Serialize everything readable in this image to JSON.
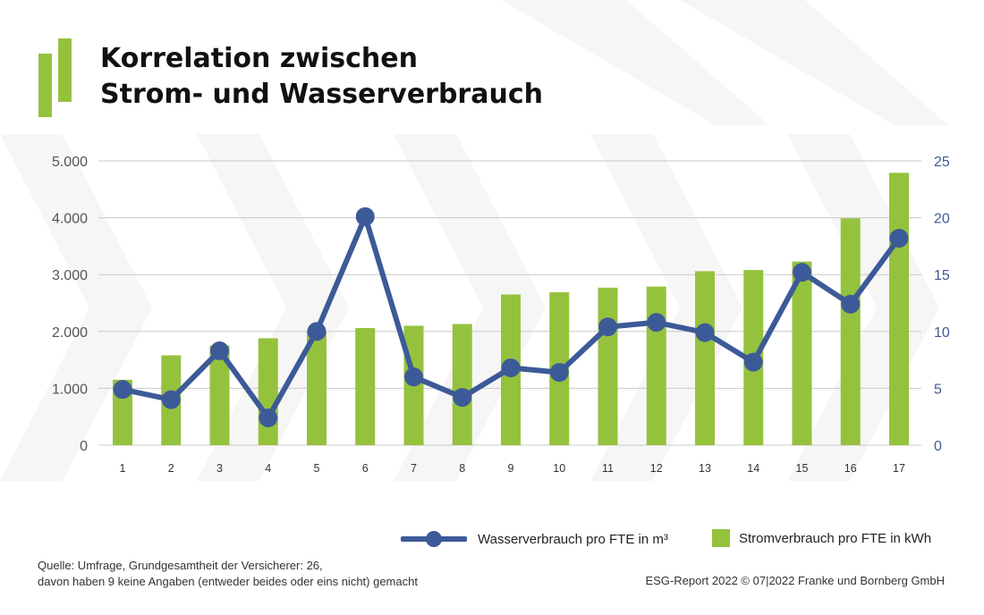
{
  "header": {
    "title_line1": "Korrelation zwischen",
    "title_line2": "Strom- und Wasserverbrauch"
  },
  "colors": {
    "accent_green": "#95c23d",
    "line_blue": "#3d5a98",
    "grid": "#c8c8c8"
  },
  "chart_data": {
    "type": "bar+line",
    "categories": [
      "1",
      "2",
      "3",
      "4",
      "5",
      "6",
      "7",
      "8",
      "9",
      "10",
      "11",
      "12",
      "13",
      "14",
      "15",
      "16",
      "17"
    ],
    "series": [
      {
        "name": "Stromverbrauch pro FTE in kWh",
        "type": "bar",
        "axis": "left",
        "values": [
          1150,
          1580,
          1750,
          1880,
          2000,
          2060,
          2100,
          2130,
          2650,
          2690,
          2770,
          2790,
          3060,
          3080,
          3230,
          3990,
          4790
        ]
      },
      {
        "name": "Wasserverbrauch pro FTE in m³",
        "type": "line",
        "axis": "right",
        "values": [
          4.9,
          4.0,
          8.3,
          2.4,
          10.0,
          20.1,
          6.0,
          4.2,
          6.8,
          6.4,
          10.4,
          10.8,
          9.9,
          7.3,
          15.2,
          12.4,
          18.2
        ]
      }
    ],
    "y_left": {
      "range": [
        0,
        5000
      ],
      "ticks": [
        "0",
        "1.000",
        "2.000",
        "3.000",
        "4.000",
        "5.000"
      ]
    },
    "y_right": {
      "range": [
        0,
        25
      ],
      "ticks": [
        "0",
        "5",
        "10",
        "15",
        "20",
        "25"
      ]
    },
    "grid": true,
    "legend_position": "bottom-right"
  },
  "legend": {
    "water_label": "Wasserverbrauch pro FTE in m³",
    "power_label": "Stromverbrauch pro FTE in kWh"
  },
  "footer": {
    "source_line1": "Quelle: Umfrage, Grundgesamtheit der Versicherer: 26,",
    "source_line2": "davon haben 9 keine Angaben (entweder beides oder eins nicht) gemacht",
    "copyright": "ESG-Report 2022 © 07|2022 Franke und Bornberg GmbH"
  }
}
